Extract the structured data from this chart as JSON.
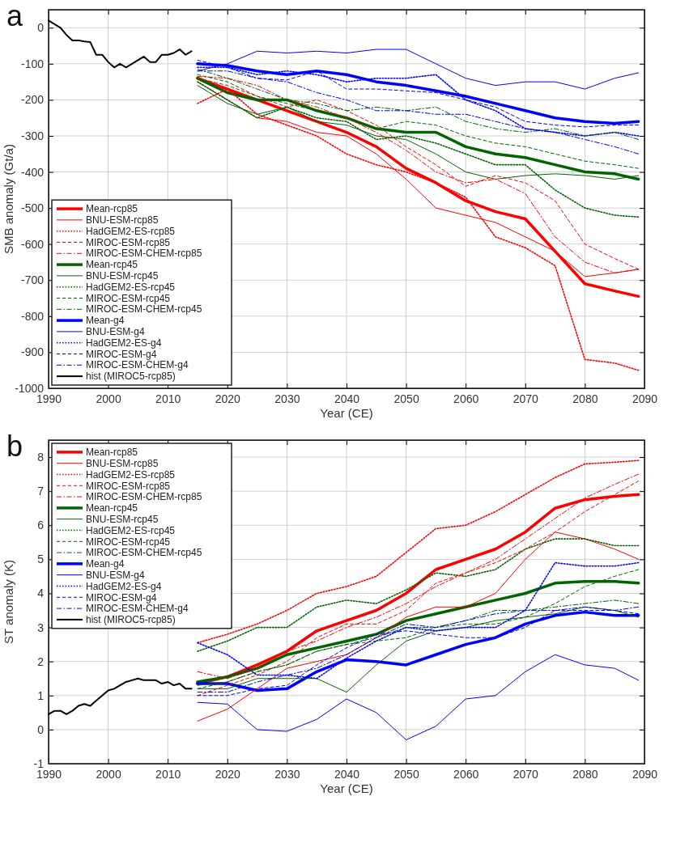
{
  "chart_data": [
    {
      "type": "line",
      "title": "a",
      "xlabel": "Year (CE)",
      "ylabel": "SMB anomaly (Gt/a)",
      "xlim": [
        1990,
        2090
      ],
      "xticks": [
        1990,
        2000,
        2010,
        2020,
        2030,
        2040,
        2050,
        2060,
        2070,
        2080,
        2090
      ],
      "ylim": [
        -1000,
        50
      ],
      "yticks": [
        -1000,
        -900,
        -800,
        -700,
        -600,
        -500,
        -400,
        -300,
        -200,
        -100,
        0
      ],
      "grid": true,
      "legend": "bottom left",
      "x": [
        2015,
        2020,
        2025,
        2030,
        2035,
        2040,
        2045,
        2050,
        2055,
        2060,
        2065,
        2070,
        2075,
        2080,
        2085,
        2089
      ],
      "series": [
        {
          "name": "Mean-rcp85",
          "color": "#ff0000",
          "line_style": "solid",
          "values": [
            -140,
            -170,
            -200,
            -230,
            -260,
            -290,
            -330,
            -390,
            -430,
            -480,
            -510,
            -530,
            -620,
            -710,
            -730,
            -745
          ]
        },
        {
          "name": "BNU-ESM-rcp85",
          "color": "#ff0000",
          "line_style": "solid",
          "values": [
            -150,
            -200,
            -250,
            -260,
            -290,
            -300,
            -350,
            -420,
            -500,
            -520,
            -540,
            -580,
            -620,
            -690,
            -680,
            -670
          ]
        },
        {
          "name": "HadGEM2-ES-rcp85",
          "color": "#ff0000",
          "line_style": "dotted",
          "values": [
            -210,
            -170,
            -240,
            -270,
            -300,
            -350,
            -380,
            -400,
            -430,
            -470,
            -580,
            -610,
            -660,
            -920,
            -930,
            -950
          ]
        },
        {
          "name": "MIROC-ESM-rcp85",
          "color": "#ff0000",
          "line_style": "dashed",
          "values": [
            -140,
            -160,
            -190,
            -220,
            -200,
            -230,
            -270,
            -330,
            -380,
            -440,
            -410,
            -430,
            -480,
            -600,
            -640,
            -670
          ]
        },
        {
          "name": "MIROC-ESM-CHEM-rcp85",
          "color": "#ff0000",
          "line_style": "dashdot",
          "values": [
            -135,
            -140,
            -160,
            -200,
            -220,
            -250,
            -290,
            -340,
            -400,
            -430,
            -420,
            -460,
            -580,
            -650,
            -680,
            -670
          ]
        },
        {
          "name": "Mean-rcp45",
          "color": "#006400",
          "line_style": "solid",
          "values": [
            -140,
            -180,
            -200,
            -200,
            -230,
            -250,
            -280,
            -290,
            -290,
            -330,
            -350,
            -360,
            -380,
            -400,
            -405,
            -420
          ]
        },
        {
          "name": "BNU-ESM-rcp45",
          "color": "#006400",
          "line_style": "solid",
          "values": [
            -160,
            -210,
            -240,
            -220,
            -260,
            -270,
            -300,
            -310,
            -350,
            -400,
            -420,
            -410,
            -405,
            -410,
            -420,
            -410
          ]
        },
        {
          "name": "HadGEM2-ES-rcp45",
          "color": "#006400",
          "line_style": "dotted",
          "values": [
            -150,
            -200,
            -250,
            -220,
            -250,
            -260,
            -310,
            -300,
            -320,
            -350,
            -380,
            -380,
            -450,
            -500,
            -520,
            -525
          ]
        },
        {
          "name": "MIROC-ESM-rcp45",
          "color": "#006400",
          "line_style": "dashed",
          "values": [
            -130,
            -150,
            -190,
            -210,
            -230,
            -250,
            -280,
            -260,
            -270,
            -300,
            -320,
            -330,
            -350,
            -370,
            -380,
            -390
          ]
        },
        {
          "name": "MIROC-ESM-CHEM-rcp45",
          "color": "#006400",
          "line_style": "dashdot",
          "values": [
            -115,
            -140,
            -170,
            -200,
            -210,
            -230,
            -220,
            -230,
            -220,
            -260,
            -280,
            -290,
            -280,
            -300,
            -290,
            -310
          ]
        },
        {
          "name": "Mean-g4",
          "color": "#0000ff",
          "line_style": "solid",
          "values": [
            -100,
            -105,
            -120,
            -130,
            -120,
            -130,
            -150,
            -160,
            -175,
            -190,
            -210,
            -230,
            -250,
            -260,
            -265,
            -260
          ]
        },
        {
          "name": "BNU-ESM-g4",
          "color": "#0000ff",
          "line_style": "solid",
          "values": [
            -120,
            -100,
            -65,
            -70,
            -65,
            -70,
            -60,
            -60,
            -100,
            -140,
            -160,
            -150,
            -150,
            -170,
            -140,
            -125
          ]
        },
        {
          "name": "HadGEM2-ES-g4",
          "color": "#0000ff",
          "line_style": "dotted",
          "values": [
            -110,
            -110,
            -130,
            -120,
            -130,
            -150,
            -140,
            -140,
            -130,
            -200,
            -230,
            -280,
            -290,
            -300,
            -290,
            -300
          ]
        },
        {
          "name": "MIROC-ESM-g4",
          "color": "#0000ff",
          "line_style": "dashed",
          "values": [
            -90,
            -110,
            -140,
            -145,
            -120,
            -170,
            -170,
            -175,
            -180,
            -200,
            -220,
            -260,
            -270,
            -275,
            -270,
            -270
          ]
        },
        {
          "name": "MIROC-ESM-CHEM-g4",
          "color": "#0000ff",
          "line_style": "dashdot",
          "values": [
            -120,
            -120,
            -140,
            -150,
            -180,
            -200,
            -230,
            -230,
            -240,
            -240,
            -260,
            -280,
            -290,
            -310,
            -330,
            -350
          ]
        },
        {
          "name": "hist (MIROC5-rcp85)",
          "color": "#000000",
          "line_style": "solid",
          "x": [
            1990,
            1991,
            1992,
            1993,
            1994,
            1995,
            1996,
            1997,
            1998,
            1999,
            2000,
            2001,
            2002,
            2003,
            2004,
            2005,
            2006,
            2007,
            2008,
            2009,
            2010,
            2011,
            2012,
            2013,
            2014
          ],
          "values": [
            20,
            10,
            0,
            -20,
            -35,
            -35,
            -38,
            -40,
            -75,
            -75,
            -95,
            -110,
            -100,
            -110,
            -100,
            -90,
            -80,
            -95,
            -95,
            -75,
            -75,
            -70,
            -60,
            -75,
            -65
          ]
        }
      ]
    },
    {
      "type": "line",
      "title": "b",
      "xlabel": "Year (CE)",
      "ylabel": "ST anomaly (K)",
      "xlim": [
        1990,
        2090
      ],
      "xticks": [
        1990,
        2000,
        2010,
        2020,
        2030,
        2040,
        2050,
        2060,
        2070,
        2080,
        2090
      ],
      "ylim": [
        -1,
        8.5
      ],
      "yticks": [
        -1,
        0,
        1,
        2,
        3,
        4,
        5,
        6,
        7,
        8
      ],
      "grid": true,
      "legend": "top left",
      "x": [
        2015,
        2020,
        2025,
        2030,
        2035,
        2040,
        2045,
        2050,
        2055,
        2060,
        2065,
        2070,
        2075,
        2080,
        2085,
        2089
      ],
      "series": [
        {
          "name": "Mean-rcp85",
          "color": "#ff0000",
          "line_style": "solid",
          "values": [
            1.35,
            1.55,
            1.9,
            2.3,
            2.9,
            3.2,
            3.5,
            4.0,
            4.7,
            5.0,
            5.3,
            5.8,
            6.5,
            6.75,
            6.85,
            6.9
          ]
        },
        {
          "name": "BNU-ESM-rcp85",
          "color": "#ff0000",
          "line_style": "solid",
          "values": [
            0.25,
            0.6,
            1.2,
            1.8,
            2.0,
            2.2,
            2.7,
            3.3,
            3.6,
            3.6,
            4.0,
            5.0,
            5.8,
            5.6,
            5.3,
            5.0
          ]
        },
        {
          "name": "HadGEM2-ES-rcp85",
          "color": "#ff0000",
          "line_style": "dotted",
          "values": [
            2.55,
            2.8,
            3.1,
            3.5,
            4.0,
            4.2,
            4.5,
            5.2,
            5.9,
            6.0,
            6.4,
            6.9,
            7.4,
            7.8,
            7.85,
            7.9
          ]
        },
        {
          "name": "MIROC-ESM-rcp85",
          "color": "#ff0000",
          "line_style": "dashed",
          "values": [
            1.0,
            1.3,
            1.6,
            2.0,
            2.7,
            3.1,
            3.1,
            3.5,
            4.3,
            4.6,
            4.9,
            5.3,
            5.8,
            6.4,
            6.9,
            7.3
          ]
        },
        {
          "name": "MIROC-ESM-CHEM-rcp85",
          "color": "#ff0000",
          "line_style": "dashdot",
          "values": [
            1.7,
            1.5,
            1.8,
            2.3,
            2.6,
            3.0,
            3.3,
            3.7,
            4.2,
            4.6,
            5.0,
            5.6,
            6.2,
            6.8,
            7.2,
            7.5
          ]
        },
        {
          "name": "Mean-rcp45",
          "color": "#006400",
          "line_style": "solid",
          "values": [
            1.4,
            1.55,
            1.8,
            2.2,
            2.4,
            2.6,
            2.8,
            3.2,
            3.4,
            3.6,
            3.8,
            4.0,
            4.3,
            4.35,
            4.35,
            4.3
          ]
        },
        {
          "name": "BNU-ESM-rcp45",
          "color": "#006400",
          "line_style": "solid",
          "values": [
            1.2,
            1.2,
            1.5,
            1.5,
            1.5,
            1.1,
            1.9,
            2.6,
            2.9,
            3.0,
            3.2,
            3.3,
            3.4,
            3.6,
            3.5,
            3.3
          ]
        },
        {
          "name": "HadGEM2-ES-rcp45",
          "color": "#006400",
          "line_style": "dotted",
          "values": [
            2.3,
            2.6,
            3.0,
            3.0,
            3.6,
            3.8,
            3.7,
            4.1,
            4.6,
            4.5,
            4.7,
            5.3,
            5.6,
            5.6,
            5.4,
            5.4
          ]
        },
        {
          "name": "MIROC-ESM-rcp45",
          "color": "#006400",
          "line_style": "dashed",
          "values": [
            1.2,
            1.4,
            1.7,
            1.9,
            2.3,
            2.5,
            2.6,
            2.7,
            3.0,
            3.1,
            3.1,
            3.3,
            3.7,
            4.2,
            4.5,
            4.7
          ]
        },
        {
          "name": "MIROC-ESM-CHEM-rcp45",
          "color": "#006400",
          "line_style": "dashdot",
          "values": [
            1.3,
            1.4,
            1.7,
            1.9,
            2.3,
            2.5,
            2.7,
            3.0,
            3.0,
            3.2,
            3.5,
            3.5,
            3.6,
            3.7,
            3.8,
            3.7
          ]
        },
        {
          "name": "Mean-g4",
          "color": "#0000ff",
          "line_style": "solid",
          "values": [
            1.35,
            1.35,
            1.15,
            1.2,
            1.7,
            2.05,
            2.0,
            1.9,
            2.2,
            2.5,
            2.7,
            3.1,
            3.35,
            3.45,
            3.35,
            3.35
          ]
        },
        {
          "name": "BNU-ESM-g4",
          "color": "#0000ff",
          "line_style": "solid",
          "values": [
            0.8,
            0.75,
            0.0,
            -0.05,
            0.3,
            0.9,
            0.5,
            -0.3,
            0.1,
            0.9,
            1.0,
            1.7,
            2.2,
            1.9,
            1.8,
            1.45
          ]
        },
        {
          "name": "HadGEM2-ES-g4",
          "color": "#0000ff",
          "line_style": "dotted",
          "values": [
            2.55,
            2.2,
            1.6,
            1.6,
            1.5,
            2.1,
            2.6,
            3.0,
            2.9,
            3.0,
            3.0,
            3.5,
            4.9,
            4.8,
            4.8,
            4.9
          ]
        },
        {
          "name": "MIROC-ESM-g4",
          "color": "#0000ff",
          "line_style": "dashed",
          "values": [
            1.0,
            1.0,
            1.2,
            1.3,
            1.9,
            2.4,
            2.8,
            2.9,
            2.8,
            2.7,
            2.7,
            3.0,
            3.5,
            3.5,
            3.5,
            3.4
          ]
        },
        {
          "name": "MIROC-ESM-CHEM-g4",
          "color": "#0000ff",
          "line_style": "dashdot",
          "values": [
            1.1,
            1.1,
            1.4,
            1.6,
            1.8,
            2.2,
            2.7,
            3.1,
            3.0,
            3.2,
            3.4,
            3.5,
            3.5,
            3.6,
            3.5,
            3.6
          ]
        },
        {
          "name": "hist (MIROC5-rcp85)",
          "color": "#000000",
          "line_style": "solid",
          "x": [
            1990,
            1991,
            1992,
            1993,
            1994,
            1995,
            1996,
            1997,
            1998,
            1999,
            2000,
            2001,
            2002,
            2003,
            2004,
            2005,
            2006,
            2007,
            2008,
            2009,
            2010,
            2011,
            2012,
            2013,
            2014
          ],
          "values": [
            0.45,
            0.55,
            0.55,
            0.45,
            0.55,
            0.7,
            0.75,
            0.7,
            0.85,
            1.0,
            1.15,
            1.2,
            1.3,
            1.4,
            1.45,
            1.5,
            1.45,
            1.45,
            1.45,
            1.35,
            1.4,
            1.3,
            1.35,
            1.2,
            1.2
          ]
        }
      ]
    }
  ]
}
